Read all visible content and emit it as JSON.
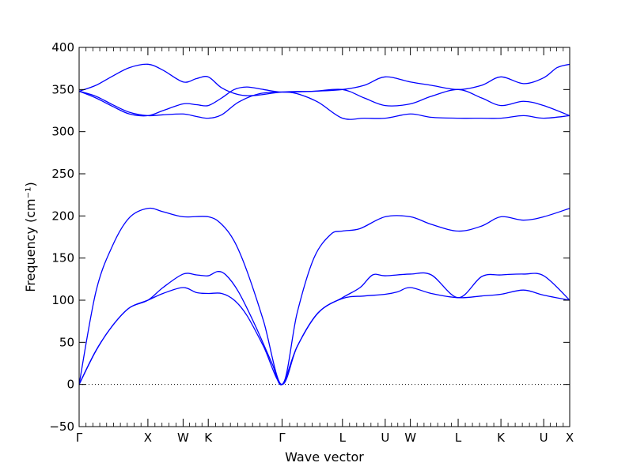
{
  "chart_data": {
    "type": "line",
    "title": "",
    "xlabel": "Wave vector",
    "ylabel": "Frequency (cm⁻¹)",
    "ylim": [
      -50,
      400
    ],
    "yticks": [
      -50,
      0,
      50,
      100,
      150,
      200,
      250,
      300,
      350,
      400
    ],
    "xlim": [
      0,
      5.85
    ],
    "high_symmetry_points": [
      {
        "label": "Γ",
        "x": 0.0
      },
      {
        "label": "X",
        "x": 0.82
      },
      {
        "label": "W",
        "x": 1.24
      },
      {
        "label": "K",
        "x": 1.54
      },
      {
        "label": "Γ",
        "x": 2.42
      },
      {
        "label": "L",
        "x": 3.14
      },
      {
        "label": "U",
        "x": 3.65
      },
      {
        "label": "W",
        "x": 3.95
      },
      {
        "label": "L",
        "x": 4.52
      },
      {
        "label": "K",
        "x": 5.03
      },
      {
        "label": "U",
        "x": 5.54
      },
      {
        "label": "X",
        "x": 5.85
      }
    ],
    "zero_line": {
      "y": 0,
      "style": "dotted"
    },
    "line_color": "#0000ff",
    "grid": false,
    "legend": "none",
    "series": [
      {
        "points": [
          [
            0,
            0
          ],
          [
            0.2,
            40
          ],
          [
            0.4,
            70
          ],
          [
            0.6,
            91
          ],
          [
            0.82,
            100
          ],
          [
            1.0,
            108
          ],
          [
            1.24,
            115
          ],
          [
            1.4,
            109
          ],
          [
            1.54,
            108
          ],
          [
            1.7,
            108
          ],
          [
            1.85,
            100
          ],
          [
            2.0,
            82
          ],
          [
            2.2,
            45
          ],
          [
            2.42,
            0
          ],
          [
            2.6,
            45
          ],
          [
            2.85,
            85
          ],
          [
            3.14,
            102
          ],
          [
            3.4,
            105
          ],
          [
            3.65,
            107
          ],
          [
            3.8,
            110
          ],
          [
            3.95,
            115
          ],
          [
            4.2,
            108
          ],
          [
            4.52,
            103
          ],
          [
            4.8,
            105
          ],
          [
            5.03,
            107
          ],
          [
            5.3,
            112
          ],
          [
            5.54,
            106
          ],
          [
            5.85,
            100
          ]
        ]
      },
      {
        "points": [
          [
            0,
            0
          ],
          [
            0.2,
            40
          ],
          [
            0.4,
            70
          ],
          [
            0.6,
            91
          ],
          [
            0.82,
            100
          ],
          [
            1.0,
            115
          ],
          [
            1.24,
            131
          ],
          [
            1.4,
            130
          ],
          [
            1.54,
            129
          ],
          [
            1.65,
            134
          ],
          [
            1.75,
            130
          ],
          [
            1.9,
            110
          ],
          [
            2.1,
            70
          ],
          [
            2.3,
            25
          ],
          [
            2.42,
            0
          ],
          [
            2.6,
            45
          ],
          [
            2.85,
            85
          ],
          [
            3.14,
            103
          ],
          [
            3.35,
            115
          ],
          [
            3.5,
            130
          ],
          [
            3.65,
            129
          ],
          [
            3.95,
            131
          ],
          [
            4.2,
            130
          ],
          [
            4.52,
            103
          ],
          [
            4.8,
            128
          ],
          [
            5.03,
            130
          ],
          [
            5.3,
            131
          ],
          [
            5.54,
            129
          ],
          [
            5.85,
            100
          ]
        ]
      },
      {
        "points": [
          [
            0,
            0
          ],
          [
            0.2,
            110
          ],
          [
            0.4,
            165
          ],
          [
            0.6,
            198
          ],
          [
            0.82,
            209
          ],
          [
            1.0,
            205
          ],
          [
            1.24,
            199
          ],
          [
            1.54,
            199
          ],
          [
            1.7,
            190
          ],
          [
            1.85,
            170
          ],
          [
            2.0,
            135
          ],
          [
            2.2,
            75
          ],
          [
            2.42,
            0
          ],
          [
            2.6,
            85
          ],
          [
            2.8,
            150
          ],
          [
            3.0,
            178
          ],
          [
            3.14,
            182
          ],
          [
            3.35,
            185
          ],
          [
            3.65,
            199
          ],
          [
            3.95,
            199
          ],
          [
            4.2,
            190
          ],
          [
            4.52,
            182
          ],
          [
            4.8,
            188
          ],
          [
            5.03,
            199
          ],
          [
            5.3,
            195
          ],
          [
            5.54,
            199
          ],
          [
            5.85,
            209
          ]
        ]
      },
      {
        "points": [
          [
            0,
            348
          ],
          [
            0.2,
            342
          ],
          [
            0.4,
            332
          ],
          [
            0.6,
            323
          ],
          [
            0.82,
            319
          ],
          [
            1.0,
            320
          ],
          [
            1.24,
            321
          ],
          [
            1.4,
            318
          ],
          [
            1.54,
            316
          ],
          [
            1.7,
            320
          ],
          [
            1.9,
            335
          ],
          [
            2.15,
            345
          ],
          [
            2.42,
            347
          ],
          [
            2.6,
            345
          ],
          [
            2.85,
            335
          ],
          [
            3.14,
            316
          ],
          [
            3.4,
            316
          ],
          [
            3.65,
            316
          ],
          [
            3.95,
            321
          ],
          [
            4.2,
            317
          ],
          [
            4.52,
            316
          ],
          [
            4.8,
            316
          ],
          [
            5.03,
            316
          ],
          [
            5.3,
            319
          ],
          [
            5.54,
            316
          ],
          [
            5.85,
            319
          ]
        ]
      },
      {
        "points": [
          [
            0,
            348
          ],
          [
            0.2,
            340
          ],
          [
            0.4,
            330
          ],
          [
            0.6,
            321
          ],
          [
            0.82,
            319
          ],
          [
            1.0,
            325
          ],
          [
            1.24,
            333
          ],
          [
            1.4,
            332
          ],
          [
            1.54,
            331
          ],
          [
            1.7,
            340
          ],
          [
            1.85,
            350
          ],
          [
            2.0,
            353
          ],
          [
            2.2,
            350
          ],
          [
            2.42,
            347
          ],
          [
            2.8,
            348
          ],
          [
            3.14,
            350
          ],
          [
            3.4,
            340
          ],
          [
            3.65,
            331
          ],
          [
            3.95,
            333
          ],
          [
            4.2,
            342
          ],
          [
            4.52,
            350
          ],
          [
            4.8,
            340
          ],
          [
            5.03,
            331
          ],
          [
            5.3,
            336
          ],
          [
            5.54,
            331
          ],
          [
            5.85,
            319
          ]
        ]
      },
      {
        "points": [
          [
            0,
            348
          ],
          [
            0.2,
            355
          ],
          [
            0.4,
            366
          ],
          [
            0.6,
            376
          ],
          [
            0.82,
            380
          ],
          [
            1.0,
            373
          ],
          [
            1.24,
            359
          ],
          [
            1.4,
            363
          ],
          [
            1.54,
            365
          ],
          [
            1.7,
            352
          ],
          [
            1.9,
            344
          ],
          [
            2.1,
            343
          ],
          [
            2.42,
            347
          ],
          [
            2.8,
            348
          ],
          [
            3.14,
            350
          ],
          [
            3.4,
            355
          ],
          [
            3.65,
            365
          ],
          [
            3.95,
            359
          ],
          [
            4.2,
            355
          ],
          [
            4.52,
            350
          ],
          [
            4.8,
            355
          ],
          [
            5.03,
            365
          ],
          [
            5.3,
            357
          ],
          [
            5.54,
            364
          ],
          [
            5.7,
            376
          ],
          [
            5.85,
            380
          ]
        ]
      }
    ]
  }
}
